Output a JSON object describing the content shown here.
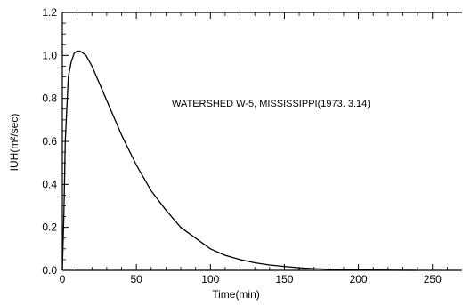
{
  "chart_data": {
    "type": "line",
    "title": "",
    "xlabel": "Time(min)",
    "ylabel": "IUH(m²/sec)",
    "xlim": [
      0,
      270
    ],
    "ylim": [
      0,
      1.2
    ],
    "x_ticks": [
      0,
      50,
      100,
      150,
      200,
      250
    ],
    "y_ticks": [
      0.0,
      0.2,
      0.4,
      0.6,
      0.8,
      1.0,
      1.2
    ],
    "x_tick_labels": [
      "0",
      "50",
      "100",
      "150",
      "200",
      "250"
    ],
    "y_tick_labels": [
      "0.0",
      "0.2",
      "0.4",
      "0.6",
      "0.8",
      "1.0",
      "1.2"
    ],
    "annotation": "WATERSHED W-5, MISSISSIPPI(1973. 3.14)",
    "grid": false,
    "series": [
      {
        "x": [
          0,
          1,
          2,
          4,
          6,
          8,
          10,
          12,
          14,
          16,
          20,
          25,
          30,
          40,
          50,
          60,
          70,
          80,
          90,
          100,
          110,
          120,
          130,
          140,
          150,
          160,
          170,
          180,
          190,
          200,
          220,
          240
        ],
        "y": [
          0.0,
          0.25,
          0.6,
          0.9,
          0.97,
          1.01,
          1.02,
          1.02,
          1.01,
          1.0,
          0.95,
          0.87,
          0.79,
          0.63,
          0.49,
          0.37,
          0.28,
          0.2,
          0.15,
          0.1,
          0.07,
          0.05,
          0.035,
          0.025,
          0.018,
          0.012,
          0.008,
          0.005,
          0.003,
          0.002,
          0.001,
          0.0
        ]
      }
    ]
  }
}
